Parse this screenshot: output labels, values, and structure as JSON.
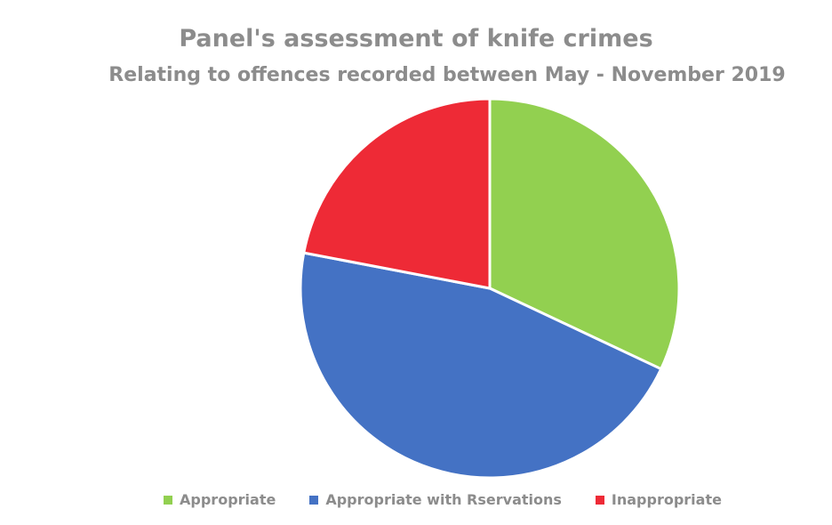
{
  "chart_data": {
    "type": "pie",
    "title": "Panel's assessment of knife crimes",
    "subtitle": "Relating to offences recorded between May - November 2019",
    "slices": [
      {
        "label": "Appropriate",
        "value": 32,
        "color": "#92d050"
      },
      {
        "label": "Appropriate with Rservations",
        "value": 46,
        "color": "#4472c4"
      },
      {
        "label": "Inappropriate",
        "value": 22,
        "color": "#ee2a36"
      }
    ],
    "legend_position": "bottom",
    "start_angle_deg": 0,
    "direction": "clockwise"
  }
}
